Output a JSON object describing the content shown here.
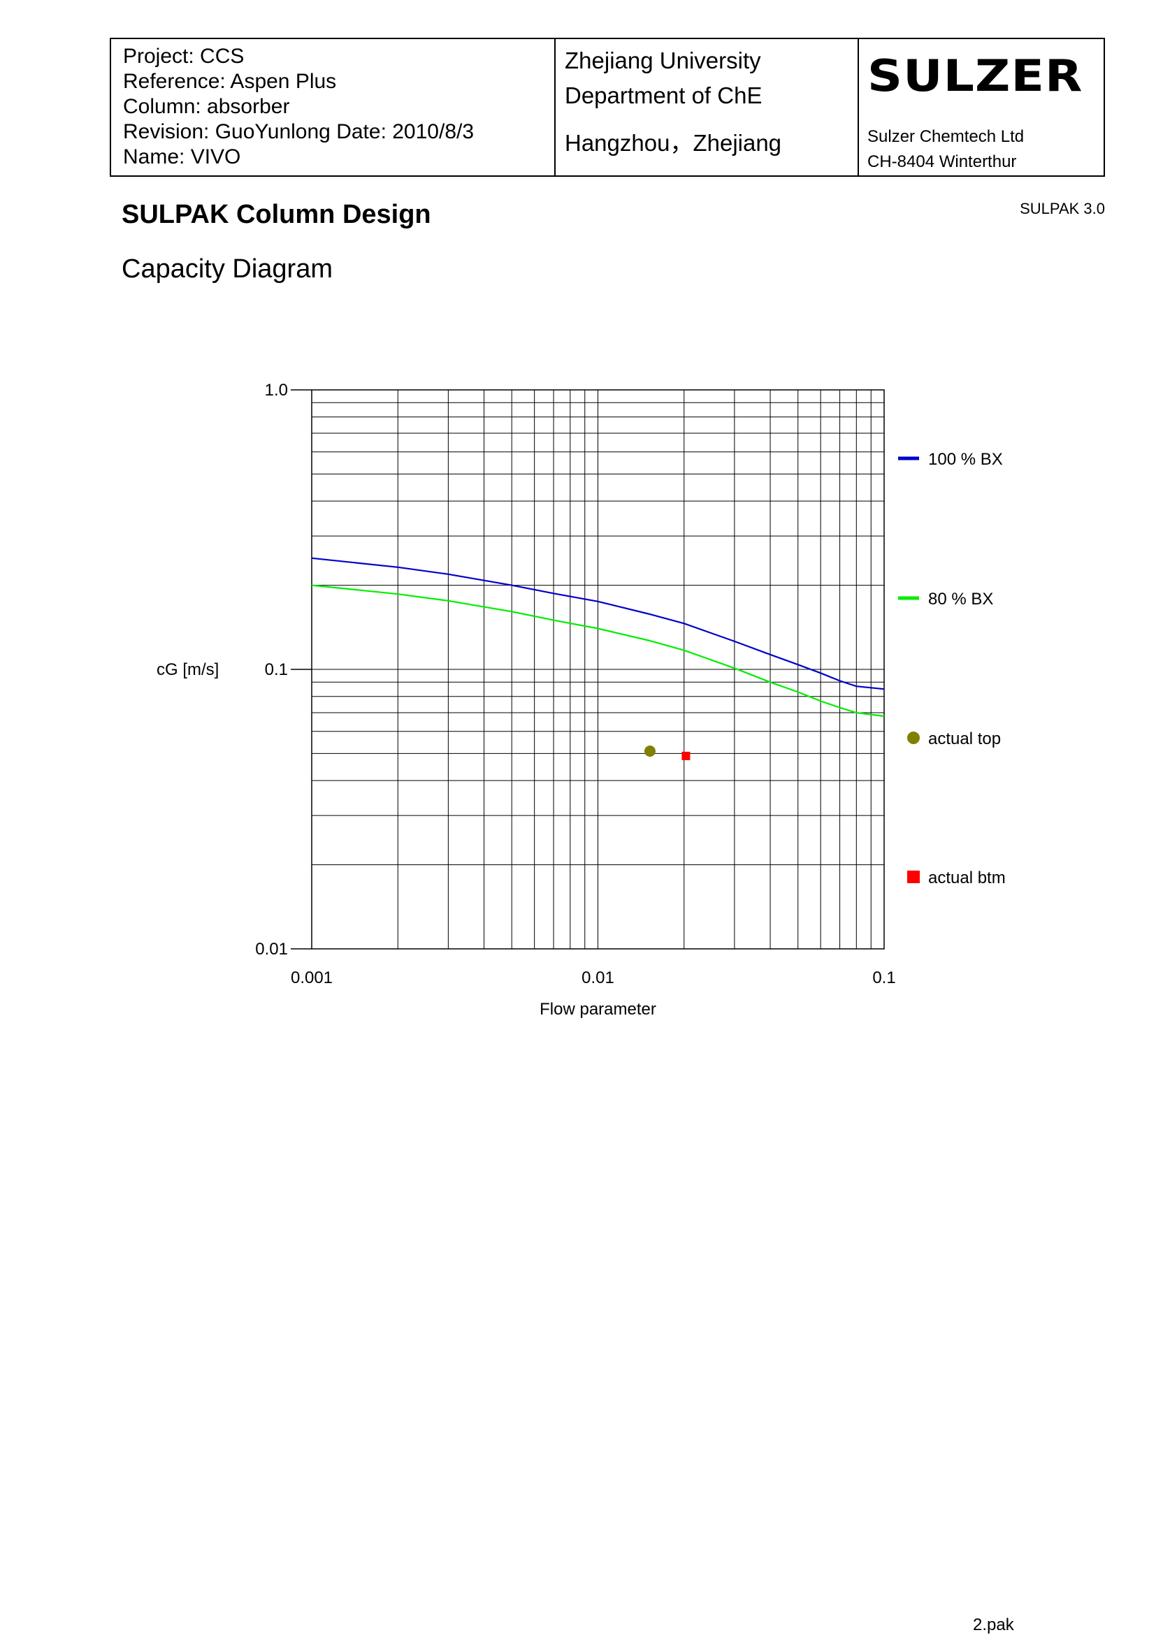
{
  "header": {
    "project": "Project:  CCS",
    "reference": "Reference:  Aspen Plus",
    "column": "Column:  absorber",
    "revision": "Revision: GuoYunlong  Date: 2010/8/3",
    "name": "Name: VIVO",
    "university": "Zhejiang University",
    "department": "Department of ChE",
    "city": "Hangzhou，Zhejiang",
    "logo": "SULZER",
    "company": "Sulzer Chemtech Ltd",
    "address": "CH-8404 Winterthur"
  },
  "page": {
    "title": "SULPAK Column Design",
    "subtitle": "Capacity Diagram",
    "version": "SULPAK 3.0",
    "footer": "2.pak"
  },
  "chart_data": {
    "type": "line",
    "xlabel": "Flow parameter",
    "ylabel": "cG [m/s]",
    "xscale": "log",
    "yscale": "log",
    "xlim": [
      0.001,
      0.1
    ],
    "ylim": [
      0.01,
      1.0
    ],
    "xticks": [
      "0.001",
      "0.01",
      "0.1"
    ],
    "yticks": [
      "0.01",
      "0.1",
      "1.0"
    ],
    "grid": true,
    "legend_position": "right",
    "series": [
      {
        "name": "100 % BX",
        "kind": "line",
        "color": "#0000cc",
        "x": [
          0.001,
          0.002,
          0.003,
          0.005,
          0.007,
          0.01,
          0.015,
          0.02,
          0.03,
          0.04,
          0.05,
          0.06,
          0.07,
          0.08,
          0.1
        ],
        "y": [
          0.25,
          0.232,
          0.219,
          0.2,
          0.187,
          0.175,
          0.158,
          0.146,
          0.126,
          0.113,
          0.104,
          0.097,
          0.091,
          0.087,
          0.085
        ]
      },
      {
        "name": "80 % BX",
        "kind": "line",
        "color": "#00ee00",
        "x": [
          0.001,
          0.002,
          0.003,
          0.005,
          0.007,
          0.01,
          0.015,
          0.02,
          0.03,
          0.04,
          0.05,
          0.06,
          0.07,
          0.08,
          0.1
        ],
        "y": [
          0.2,
          0.186,
          0.176,
          0.161,
          0.15,
          0.14,
          0.127,
          0.117,
          0.101,
          0.09,
          0.083,
          0.077,
          0.073,
          0.07,
          0.068
        ]
      },
      {
        "name": "actual top",
        "kind": "point-circle",
        "color": "#808000",
        "x": [
          0.0152
        ],
        "y": [
          0.051
        ]
      },
      {
        "name": "actual btm",
        "kind": "point-square",
        "color": "#ff0000",
        "x": [
          0.0203
        ],
        "y": [
          0.049
        ]
      }
    ]
  }
}
